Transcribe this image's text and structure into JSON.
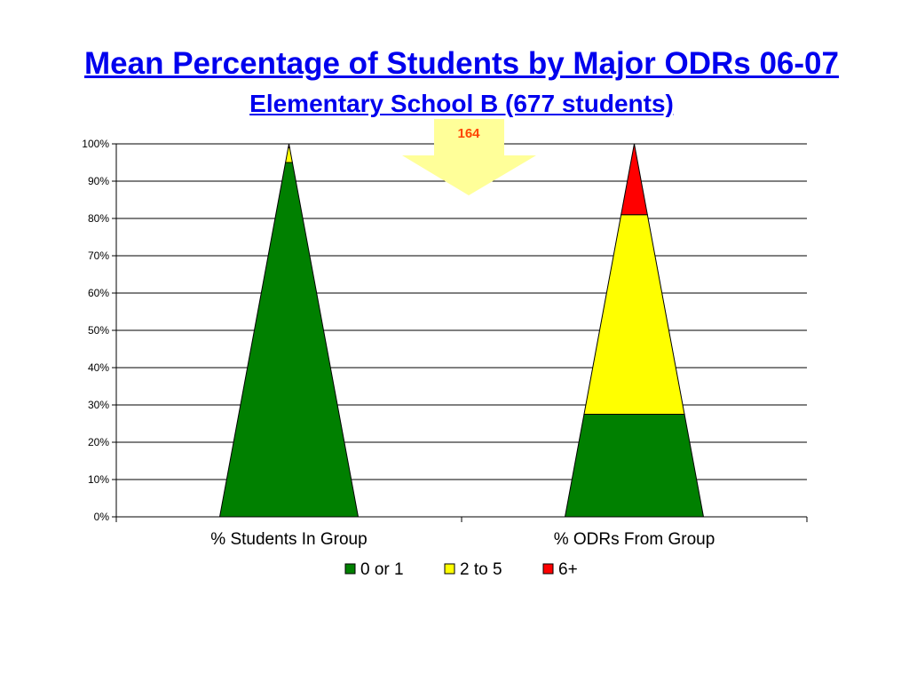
{
  "slide": {
    "title": "Mean Percentage of Students by Major ODRs 06-07",
    "subtitle": "Elementary School B  (677 students)"
  },
  "callout": {
    "label": "164",
    "arrow_color": "#ffff99",
    "text_color": "#ff4500"
  },
  "chart_data": {
    "type": "area",
    "stacked": true,
    "shape": "triangle",
    "categories": [
      "% Students In Group",
      "% ODRs From Group"
    ],
    "series": [
      {
        "name": "0 or 1",
        "color": "#008000",
        "values": [
          95,
          27.5
        ]
      },
      {
        "name": "2 to 5",
        "color": "#ffff00",
        "values": [
          4,
          53.5
        ]
      },
      {
        "name": "6+",
        "color": "#ff0000",
        "values": [
          1,
          19
        ]
      }
    ],
    "ylim": [
      0,
      100
    ],
    "y_ticks": [
      "0%",
      "10%",
      "20%",
      "30%",
      "40%",
      "50%",
      "60%",
      "70%",
      "80%",
      "90%",
      "100%"
    ],
    "grid": true,
    "legend": "bottom"
  }
}
